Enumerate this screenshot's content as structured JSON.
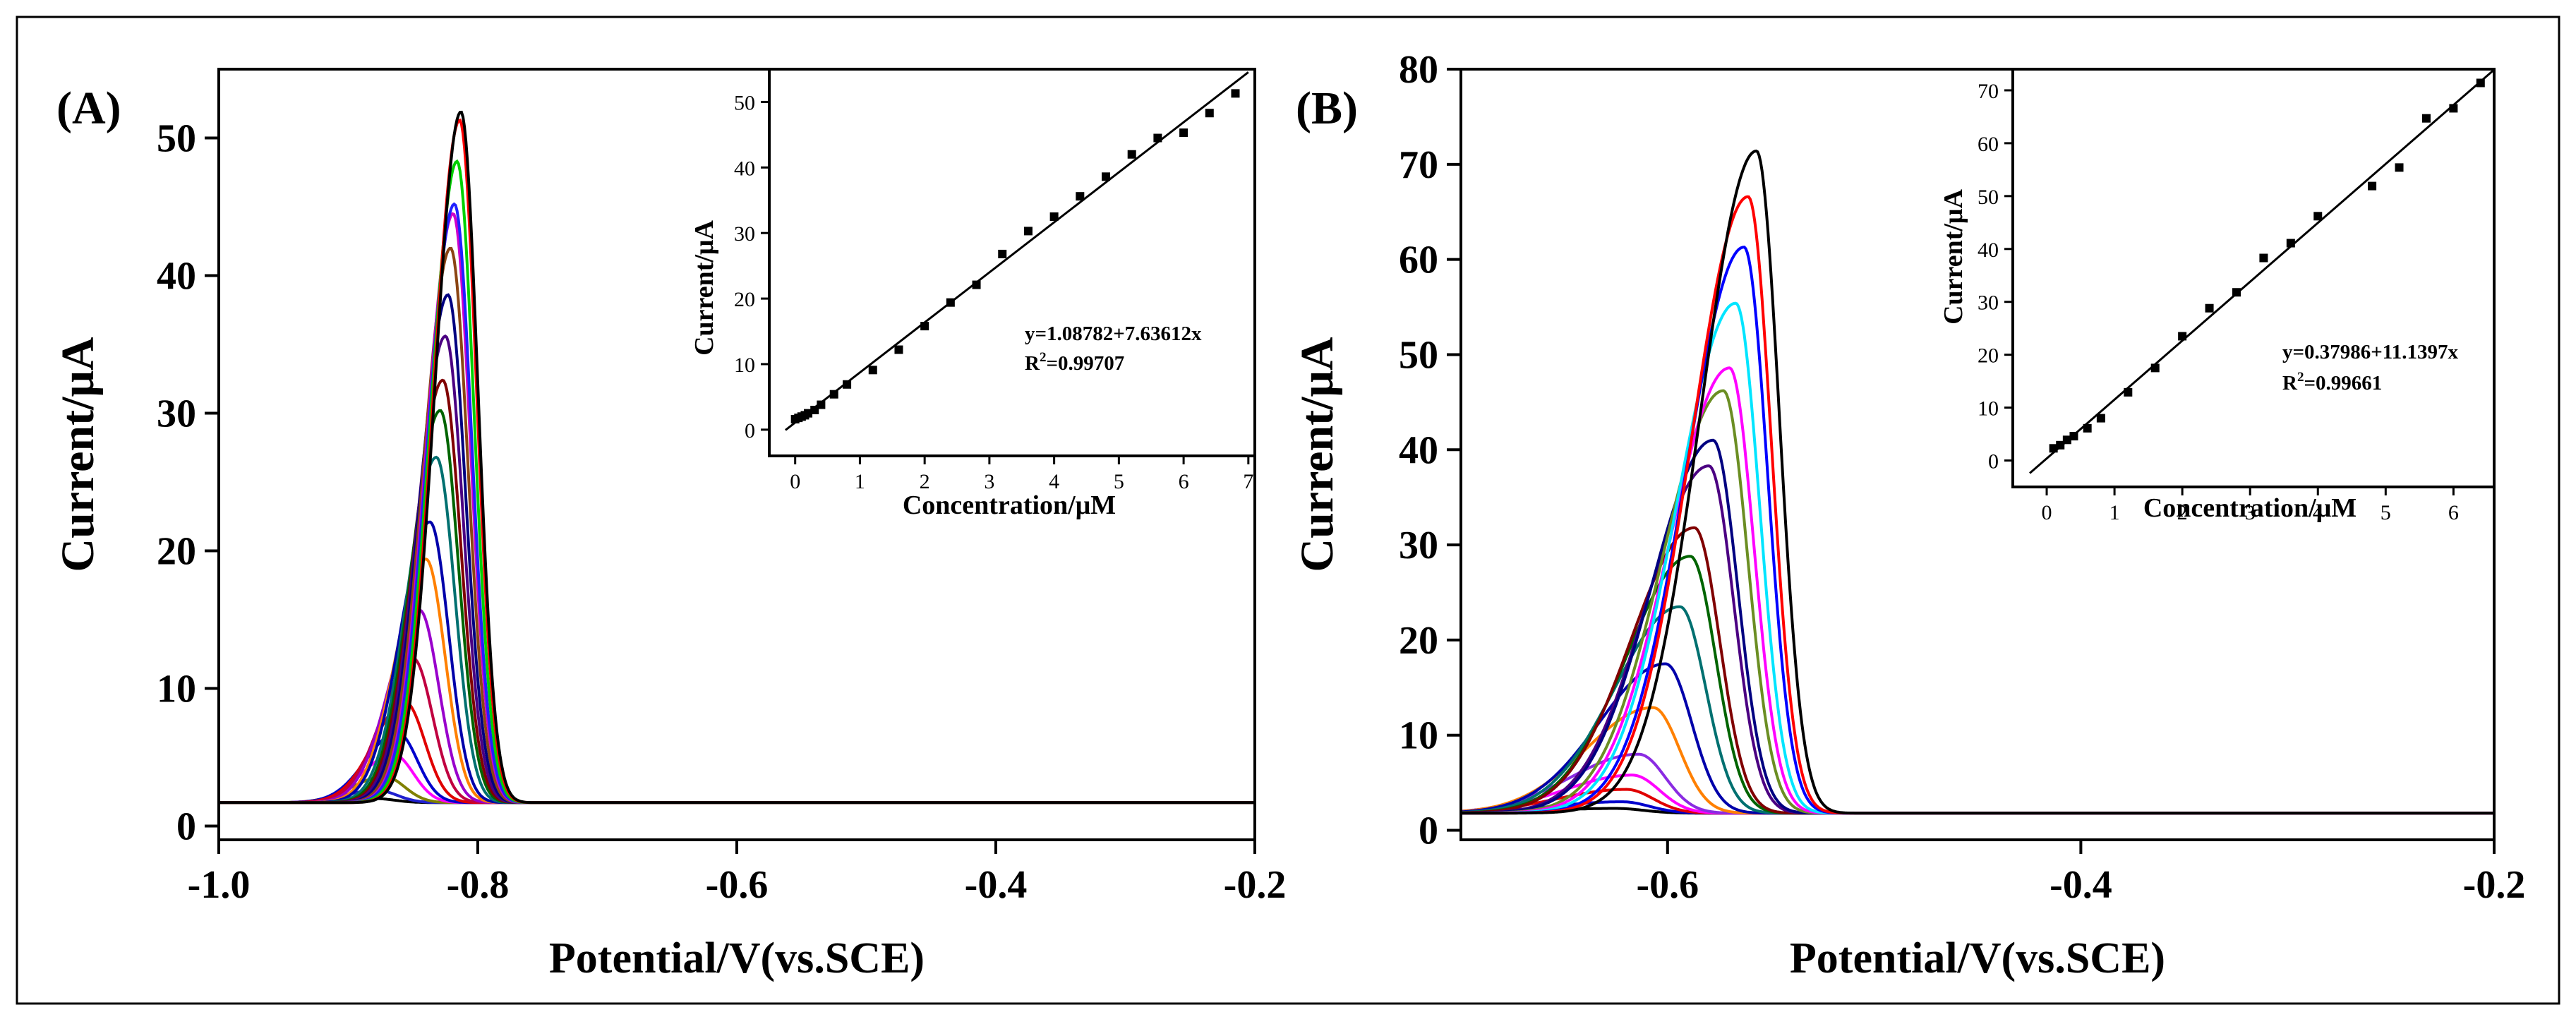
{
  "chart_data": [
    {
      "type": "line",
      "panel_label": "(A)",
      "xlabel": "Potential/V(vs.SCE)",
      "ylabel": "Current/μA",
      "xlim": [
        -1.0,
        -0.2
      ],
      "ylim": [
        -1,
        55
      ],
      "xticks": [
        -1.0,
        -0.8,
        -0.6,
        -0.4,
        -0.2
      ],
      "xtick_labels": [
        "-1.0",
        "-0.8",
        "-0.6",
        "-0.4",
        "-0.2"
      ],
      "yticks": [
        0,
        10,
        20,
        30,
        40,
        50
      ],
      "ytick_labels": [
        "0",
        "10",
        "20",
        "30",
        "40",
        "50"
      ],
      "baseline": 1.7,
      "series": [
        {
          "name": "c1",
          "peak_potential": -0.88,
          "peak_current": 2.0,
          "color": "#000000"
        },
        {
          "name": "c2",
          "peak_potential": -0.878,
          "peak_current": 2.6,
          "color": "#1f1fcf"
        },
        {
          "name": "c3",
          "peak_potential": -0.872,
          "peak_current": 3.6,
          "color": "#808000"
        },
        {
          "name": "c4",
          "peak_potential": -0.865,
          "peak_current": 5.2,
          "color": "#ff00ff"
        },
        {
          "name": "c5",
          "peak_potential": -0.862,
          "peak_current": 6.8,
          "color": "#0000cc"
        },
        {
          "name": "c6",
          "peak_potential": -0.856,
          "peak_current": 9.0,
          "color": "#e00000"
        },
        {
          "name": "c7",
          "peak_potential": -0.85,
          "peak_current": 12.2,
          "color": "#c00040"
        },
        {
          "name": "c8",
          "peak_potential": -0.845,
          "peak_current": 15.7,
          "color": "#9900cc"
        },
        {
          "name": "c9",
          "peak_potential": -0.84,
          "peak_current": 19.4,
          "color": "#ff8000"
        },
        {
          "name": "c10",
          "peak_potential": -0.837,
          "peak_current": 22.1,
          "color": "#0000aa"
        },
        {
          "name": "c11",
          "peak_potential": -0.832,
          "peak_current": 26.8,
          "color": "#007070"
        },
        {
          "name": "c12",
          "peak_potential": -0.829,
          "peak_current": 30.2,
          "color": "#006400"
        },
        {
          "name": "c13",
          "peak_potential": -0.827,
          "peak_current": 32.4,
          "color": "#800000"
        },
        {
          "name": "c14",
          "peak_potential": -0.825,
          "peak_current": 35.6,
          "color": "#4b0082"
        },
        {
          "name": "c15",
          "peak_potential": -0.823,
          "peak_current": 38.6,
          "color": "#000080"
        },
        {
          "name": "c16",
          "peak_potential": -0.821,
          "peak_current": 42.0,
          "color": "#8b4513"
        },
        {
          "name": "c17",
          "peak_potential": -0.819,
          "peak_current": 44.5,
          "color": "#cc00cc"
        },
        {
          "name": "c18",
          "peak_potential": -0.818,
          "peak_current": 45.2,
          "color": "#2020ff"
        },
        {
          "name": "c19",
          "peak_potential": -0.816,
          "peak_current": 48.3,
          "color": "#00d000"
        },
        {
          "name": "c20",
          "peak_potential": -0.814,
          "peak_current": 51.3,
          "color": "#ff0000"
        },
        {
          "name": "c21",
          "peak_potential": -0.813,
          "peak_current": 51.9,
          "color": "#000000"
        }
      ],
      "inset": {
        "type": "scatter",
        "xlabel": "Concentration/μM",
        "ylabel": "Current/μA",
        "xlim": [
          -0.4,
          7.1
        ],
        "ylim": [
          -4,
          55
        ],
        "xticks": [
          0,
          1,
          2,
          3,
          4,
          5,
          6,
          7
        ],
        "xtick_labels": [
          "0",
          "1",
          "2",
          "3",
          "4",
          "5",
          "6",
          "7"
        ],
        "yticks": [
          0,
          10,
          20,
          30,
          40,
          50
        ],
        "ytick_labels": [
          "0",
          "10",
          "20",
          "30",
          "40",
          "50"
        ],
        "x": [
          0.0,
          0.05,
          0.1,
          0.15,
          0.2,
          0.3,
          0.4,
          0.6,
          0.8,
          1.2,
          1.6,
          2.0,
          2.4,
          2.8,
          3.2,
          3.6,
          4.0,
          4.4,
          4.8,
          5.2,
          5.6,
          6.0,
          6.4,
          6.8
        ],
        "y": [
          1.6,
          1.8,
          2.0,
          2.2,
          2.5,
          3.0,
          3.8,
          5.4,
          6.9,
          9.1,
          12.2,
          15.8,
          19.4,
          22.1,
          26.8,
          30.3,
          32.5,
          35.6,
          38.6,
          42.0,
          44.5,
          45.3,
          48.3,
          51.3
        ],
        "fit_intercept": 1.08782,
        "fit_slope": 7.63612,
        "equation": "y=1.08782+7.63612x",
        "r2_prefix": "R",
        "r2_sup": "2",
        "r2_value": "=0.99707"
      }
    },
    {
      "type": "line",
      "panel_label": "(B)",
      "xlabel": "Potential/V(vs.SCE)",
      "ylabel": "Current/μA",
      "xlim": [
        -0.7,
        -0.2
      ],
      "ylim": [
        -1,
        80
      ],
      "xticks": [
        -0.6,
        -0.4,
        -0.2
      ],
      "xtick_labels": [
        "-0.6",
        "-0.4",
        "-0.2"
      ],
      "yticks": [
        0,
        10,
        20,
        30,
        40,
        50,
        60,
        70,
        80
      ],
      "ytick_labels": [
        "0",
        "10",
        "20",
        "30",
        "40",
        "50",
        "60",
        "70",
        "80"
      ],
      "baseline": 1.8,
      "series": [
        {
          "name": "c1",
          "peak_potential": -0.625,
          "peak_current": 2.3,
          "color": "#000000"
        },
        {
          "name": "c2",
          "peak_potential": -0.622,
          "peak_current": 3.0,
          "color": "#0000cc"
        },
        {
          "name": "c3",
          "peak_potential": -0.62,
          "peak_current": 4.3,
          "color": "#e00000"
        },
        {
          "name": "c4",
          "peak_potential": -0.617,
          "peak_current": 5.8,
          "color": "#ff00ff"
        },
        {
          "name": "c5",
          "peak_potential": -0.614,
          "peak_current": 8.0,
          "color": "#8a2be2"
        },
        {
          "name": "c6",
          "peak_potential": -0.607,
          "peak_current": 12.9,
          "color": "#ff8000"
        },
        {
          "name": "c7",
          "peak_potential": -0.601,
          "peak_current": 17.5,
          "color": "#0000aa"
        },
        {
          "name": "c8",
          "peak_potential": -0.594,
          "peak_current": 23.5,
          "color": "#007070"
        },
        {
          "name": "c9",
          "peak_potential": -0.589,
          "peak_current": 28.8,
          "color": "#006400"
        },
        {
          "name": "c10",
          "peak_potential": -0.587,
          "peak_current": 31.8,
          "color": "#800000"
        },
        {
          "name": "c11",
          "peak_potential": -0.58,
          "peak_current": 38.3,
          "color": "#4b0082"
        },
        {
          "name": "c12",
          "peak_potential": -0.578,
          "peak_current": 41.0,
          "color": "#000080"
        },
        {
          "name": "c13",
          "peak_potential": -0.573,
          "peak_current": 46.2,
          "color": "#6b8e23"
        },
        {
          "name": "c14",
          "peak_potential": -0.57,
          "peak_current": 48.6,
          "color": "#ff00ff"
        },
        {
          "name": "c15",
          "peak_potential": -0.567,
          "peak_current": 55.4,
          "color": "#00e5ff"
        },
        {
          "name": "c16",
          "peak_potential": -0.563,
          "peak_current": 61.3,
          "color": "#0000ff"
        },
        {
          "name": "c17",
          "peak_potential": -0.561,
          "peak_current": 66.6,
          "color": "#ff0000"
        },
        {
          "name": "c18",
          "peak_potential": -0.557,
          "peak_current": 71.4,
          "color": "#000000"
        }
      ],
      "inset": {
        "type": "scatter",
        "xlabel": "Concentration/μM",
        "ylabel": "Current/μA",
        "xlim": [
          -0.5,
          6.6
        ],
        "ylim": [
          -5,
          74
        ],
        "xticks": [
          0,
          1,
          2,
          3,
          4,
          5,
          6
        ],
        "xtick_labels": [
          "0",
          "1",
          "2",
          "3",
          "4",
          "5",
          "6"
        ],
        "yticks": [
          0,
          10,
          20,
          30,
          40,
          50,
          60,
          70
        ],
        "ytick_labels": [
          "0",
          "10",
          "20",
          "30",
          "40",
          "50",
          "60",
          "70"
        ],
        "x": [
          0.1,
          0.2,
          0.3,
          0.4,
          0.6,
          0.8,
          1.2,
          1.6,
          2.0,
          2.4,
          2.8,
          3.2,
          3.6,
          4.0,
          4.8,
          5.2,
          5.6,
          6.0,
          6.4
        ],
        "y": [
          2.3,
          2.9,
          3.9,
          4.6,
          6.1,
          8.0,
          12.9,
          17.5,
          23.5,
          28.8,
          31.8,
          38.3,
          41.1,
          46.2,
          51.9,
          55.4,
          64.7,
          66.6,
          71.4
        ],
        "fit_intercept": 0.37986,
        "fit_slope": 11.1397,
        "equation": "y=0.37986+11.1397x",
        "r2_prefix": "R",
        "r2_sup": "2",
        "r2_value": "=0.99661"
      }
    }
  ]
}
